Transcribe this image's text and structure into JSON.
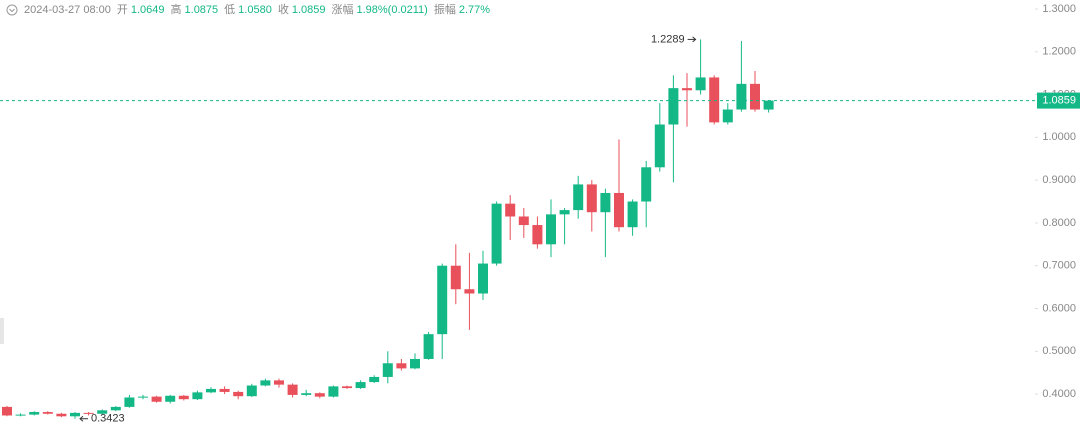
{
  "header": {
    "date": "2024-03-27 08:00",
    "items": [
      {
        "label": "开",
        "value": "1.0649"
      },
      {
        "label": "高",
        "value": "1.0875"
      },
      {
        "label": "低",
        "value": "1.0580"
      },
      {
        "label": "收",
        "value": "1.0859"
      },
      {
        "label": "涨幅",
        "value": "1.98%(0.0211)"
      },
      {
        "label": "振幅",
        "value": "2.77%"
      }
    ]
  },
  "chart_data": {
    "type": "candlestick",
    "up_color": "#14b886",
    "down_color": "#e8505b",
    "ylim": [
      0.316,
      1.321
    ],
    "yticks": [
      {
        "value": 0.4,
        "label": "0.4000"
      },
      {
        "value": 0.5,
        "label": "0.5000"
      },
      {
        "value": 0.6,
        "label": "0.6000"
      },
      {
        "value": 0.7,
        "label": "0.7000"
      },
      {
        "value": 0.8,
        "label": "0.8000"
      },
      {
        "value": 0.9,
        "label": "0.9000"
      },
      {
        "value": 1.0,
        "label": "1.0000"
      },
      {
        "value": 1.1,
        "label": "1.1000"
      },
      {
        "value": 1.2,
        "label": "1.2000"
      },
      {
        "value": 1.3,
        "label": "1.3000"
      }
    ],
    "last_price": {
      "value": 1.0859,
      "label": "1.0859"
    },
    "max_label": {
      "value": 1.2289,
      "label": "1.2289"
    },
    "min_label": {
      "value": 0.3423,
      "label": "0.3423"
    },
    "candles": {
      "open": [
        0.37,
        0.35,
        0.352,
        0.358,
        0.354,
        0.348,
        0.356,
        0.354,
        0.362,
        0.37,
        0.392,
        0.394,
        0.382,
        0.396,
        0.388,
        0.404,
        0.412,
        0.405,
        0.395,
        0.42,
        0.432,
        0.422,
        0.398,
        0.402,
        0.394,
        0.418,
        0.414,
        0.428,
        0.44,
        0.472,
        0.46,
        0.482,
        0.54,
        0.7,
        0.645,
        0.635,
        0.705,
        0.845,
        0.815,
        0.795,
        0.75,
        0.82,
        0.83,
        0.89,
        0.825,
        0.87,
        0.79,
        0.85,
        0.93,
        1.03,
        1.115,
        1.11,
        1.14,
        1.035,
        1.065,
        1.125,
        1.0649
      ],
      "high": [
        0.372,
        0.355,
        0.36,
        0.36,
        0.356,
        0.358,
        0.358,
        0.364,
        0.372,
        0.398,
        0.398,
        0.396,
        0.398,
        0.398,
        0.408,
        0.416,
        0.418,
        0.408,
        0.424,
        0.436,
        0.436,
        0.425,
        0.41,
        0.404,
        0.42,
        0.42,
        0.432,
        0.444,
        0.5,
        0.482,
        0.495,
        0.545,
        0.705,
        0.75,
        0.73,
        0.735,
        0.85,
        0.865,
        0.835,
        0.815,
        0.855,
        0.835,
        0.91,
        0.9,
        0.88,
        0.995,
        0.855,
        0.945,
        1.08,
        1.145,
        1.15,
        1.2289,
        1.145,
        1.08,
        1.225,
        1.155,
        1.0875
      ],
      "low": [
        0.348,
        0.348,
        0.35,
        0.352,
        0.346,
        0.3423,
        0.35,
        0.352,
        0.36,
        0.368,
        0.388,
        0.38,
        0.378,
        0.385,
        0.386,
        0.402,
        0.4,
        0.388,
        0.393,
        0.418,
        0.415,
        0.392,
        0.395,
        0.39,
        0.392,
        0.412,
        0.412,
        0.426,
        0.425,
        0.455,
        0.458,
        0.48,
        0.482,
        0.61,
        0.55,
        0.62,
        0.7,
        0.76,
        0.765,
        0.74,
        0.72,
        0.75,
        0.81,
        0.78,
        0.72,
        0.78,
        0.77,
        0.79,
        0.92,
        0.895,
        1.025,
        1.1,
        1.03,
        1.03,
        1.06,
        1.06,
        1.058
      ],
      "close": [
        0.35,
        0.352,
        0.358,
        0.354,
        0.348,
        0.356,
        0.354,
        0.362,
        0.37,
        0.392,
        0.394,
        0.382,
        0.396,
        0.388,
        0.404,
        0.412,
        0.405,
        0.395,
        0.42,
        0.432,
        0.422,
        0.398,
        0.402,
        0.394,
        0.418,
        0.414,
        0.428,
        0.44,
        0.472,
        0.46,
        0.482,
        0.54,
        0.7,
        0.645,
        0.635,
        0.705,
        0.845,
        0.815,
        0.795,
        0.75,
        0.82,
        0.83,
        0.89,
        0.825,
        0.87,
        0.79,
        0.85,
        0.93,
        1.03,
        1.115,
        1.11,
        1.14,
        1.035,
        1.065,
        1.125,
        1.065,
        1.0859
      ]
    }
  }
}
